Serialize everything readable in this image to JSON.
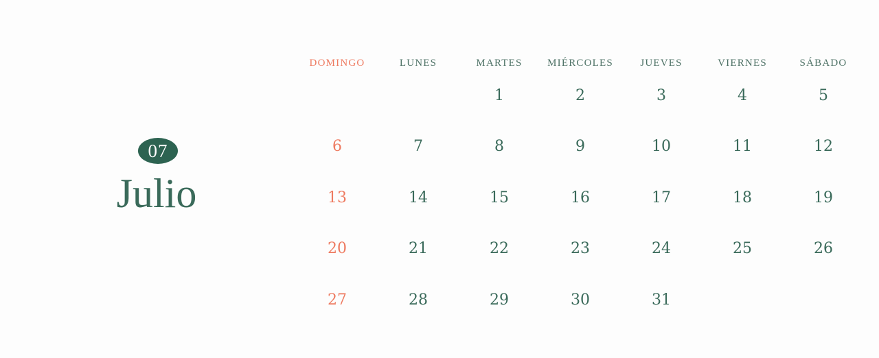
{
  "month": {
    "badge_number": "07",
    "name": "Julio"
  },
  "colors": {
    "background": "#fdfdfd",
    "green": "#2d6351",
    "green_text": "#3a6a5a",
    "header_green": "#4e7266",
    "coral": "#ee7a60",
    "badge_text": "#ffffff"
  },
  "calendar": {
    "weekdays": [
      {
        "label": "DOMINGO",
        "highlight": true
      },
      {
        "label": "LUNES",
        "highlight": false
      },
      {
        "label": "MARTES",
        "highlight": false
      },
      {
        "label": "MIÉRCOLES",
        "highlight": false
      },
      {
        "label": "JUEVES",
        "highlight": false
      },
      {
        "label": "VIERNES",
        "highlight": false
      },
      {
        "label": "SÁBADO",
        "highlight": false
      }
    ],
    "weeks": [
      [
        "",
        "",
        "1",
        "2",
        "3",
        "4",
        "5"
      ],
      [
        "6",
        "7",
        "8",
        "9",
        "10",
        "11",
        "12"
      ],
      [
        "13",
        "14",
        "15",
        "16",
        "17",
        "18",
        "19"
      ],
      [
        "20",
        "21",
        "22",
        "23",
        "24",
        "25",
        "26"
      ],
      [
        "27",
        "28",
        "29",
        "30",
        "31",
        "",
        ""
      ]
    ]
  }
}
